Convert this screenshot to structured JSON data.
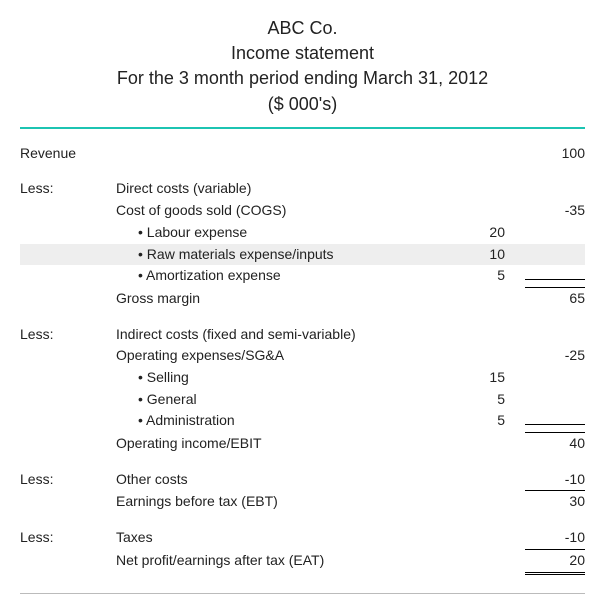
{
  "header": {
    "company": "ABC Co.",
    "title": "Income statement",
    "period": "For the 3 month period ending March 31, 2012",
    "units": "($ 000's)"
  },
  "labels": {
    "less": "Less:",
    "revenue": "Revenue",
    "direct_costs": "Direct costs (variable)",
    "cogs": "Cost of goods sold (COGS)",
    "labour": "• Labour expense",
    "raw": "• Raw materials expense/inputs",
    "amort": "• Amortization expense",
    "gross_margin": "Gross margin",
    "indirect": "Indirect costs (fixed and semi-variable)",
    "sga": "Operating expenses/SG&A",
    "selling": "• Selling",
    "general": "• General",
    "admin": "• Administration",
    "ebit": "Operating income/EBIT",
    "other_costs": "Other costs",
    "ebt": "Earnings before tax (EBT)",
    "taxes": "Taxes",
    "eat": "Net profit/earnings after tax (EAT)"
  },
  "values": {
    "revenue": "100",
    "cogs": "-35",
    "labour": "20",
    "raw": "10",
    "amort": "5",
    "gross_margin": "65",
    "sga": "-25",
    "selling": "15",
    "general": "5",
    "admin": "5",
    "ebit": "40",
    "other_costs": "-10",
    "ebt": "30",
    "taxes": "-10",
    "eat": "20"
  },
  "style": {
    "accent_color": "#1cc4b2",
    "highlight_bg": "#eeeeee",
    "text_color": "#222222",
    "header_fontsize_pt": 14,
    "body_fontsize_pt": 10
  }
}
